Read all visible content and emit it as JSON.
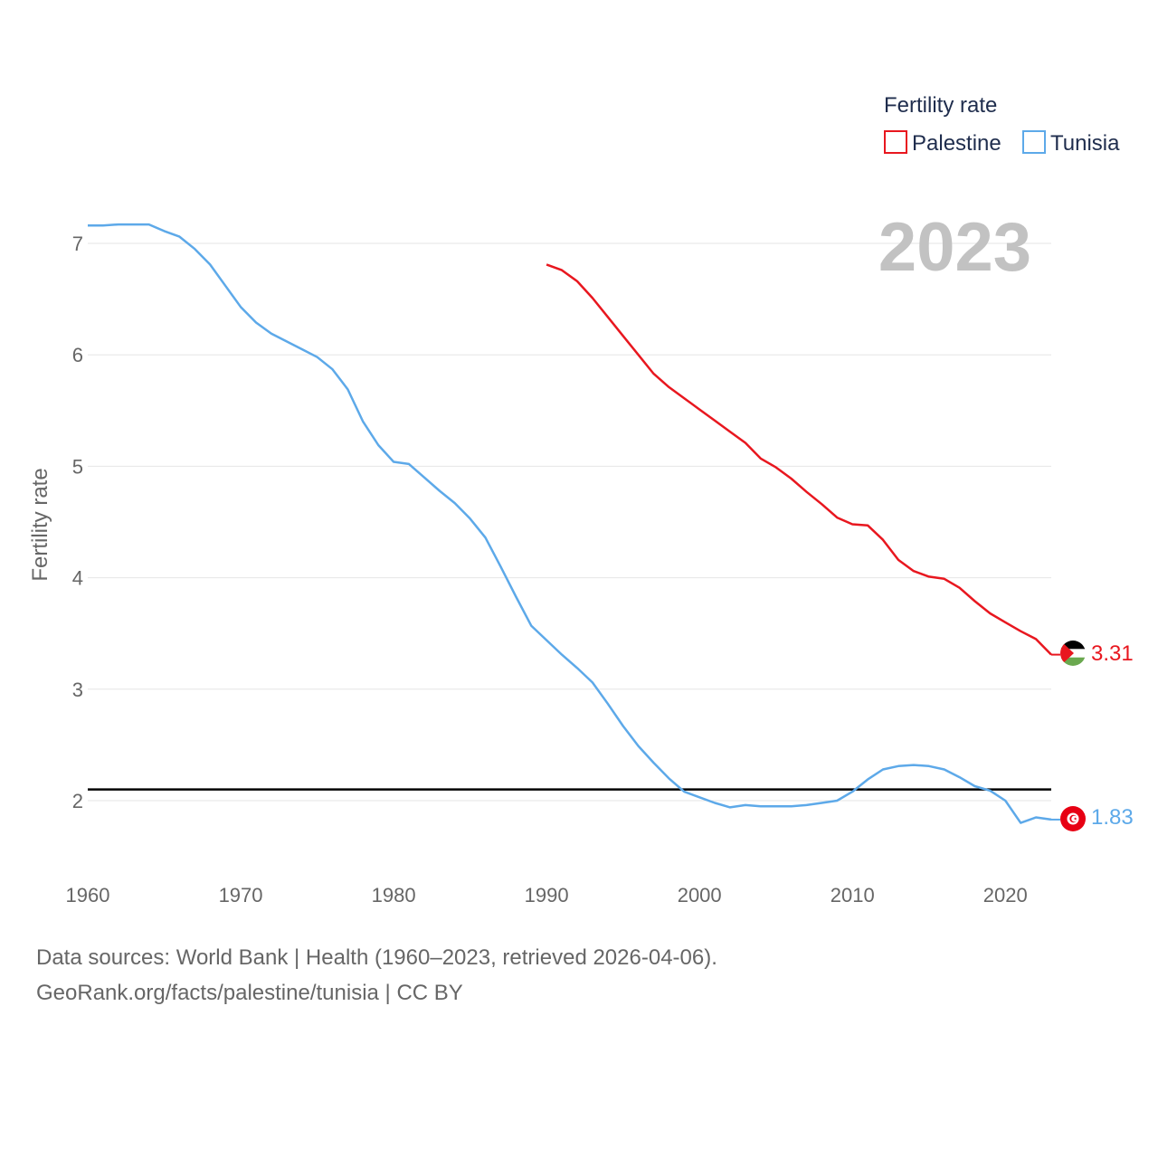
{
  "chart_data": {
    "type": "line",
    "title": "",
    "year_label": "2023",
    "xlabel": "",
    "ylabel": "Fertility rate",
    "xlim": [
      1960,
      2023
    ],
    "ylim": [
      1.2,
      7.3
    ],
    "x_ticks": [
      1960,
      1970,
      1980,
      1990,
      2000,
      2010,
      2020
    ],
    "y_ticks": [
      2,
      3,
      4,
      5,
      6,
      7
    ],
    "reference_line": {
      "y": 2.1,
      "color": "#000000"
    },
    "legend": {
      "title": "Fertility rate",
      "position": "top-right"
    },
    "series": [
      {
        "name": "Palestine",
        "color": "#e8171f",
        "end_label": "3.31",
        "points": [
          [
            1990,
            6.81
          ],
          [
            1991,
            6.76
          ],
          [
            1992,
            6.66
          ],
          [
            1993,
            6.51
          ],
          [
            1994,
            6.34
          ],
          [
            1995,
            6.17
          ],
          [
            1996,
            6.0
          ],
          [
            1997,
            5.83
          ],
          [
            1998,
            5.71
          ],
          [
            1999,
            5.61
          ],
          [
            2000,
            5.51
          ],
          [
            2001,
            5.41
          ],
          [
            2002,
            5.31
          ],
          [
            2003,
            5.21
          ],
          [
            2004,
            5.07
          ],
          [
            2005,
            4.99
          ],
          [
            2006,
            4.89
          ],
          [
            2007,
            4.77
          ],
          [
            2008,
            4.66
          ],
          [
            2009,
            4.54
          ],
          [
            2010,
            4.48
          ],
          [
            2011,
            4.47
          ],
          [
            2012,
            4.34
          ],
          [
            2013,
            4.16
          ],
          [
            2014,
            4.06
          ],
          [
            2015,
            4.01
          ],
          [
            2016,
            3.99
          ],
          [
            2017,
            3.91
          ],
          [
            2018,
            3.79
          ],
          [
            2019,
            3.68
          ],
          [
            2020,
            3.6
          ],
          [
            2021,
            3.52
          ],
          [
            2022,
            3.45
          ],
          [
            2023,
            3.31
          ]
        ]
      },
      {
        "name": "Tunisia",
        "color": "#5da9e9",
        "end_label": "1.83",
        "points": [
          [
            1960,
            7.16
          ],
          [
            1961,
            7.16
          ],
          [
            1962,
            7.17
          ],
          [
            1963,
            7.17
          ],
          [
            1964,
            7.17
          ],
          [
            1965,
            7.11
          ],
          [
            1966,
            7.06
          ],
          [
            1967,
            6.95
          ],
          [
            1968,
            6.81
          ],
          [
            1969,
            6.62
          ],
          [
            1970,
            6.43
          ],
          [
            1971,
            6.29
          ],
          [
            1972,
            6.19
          ],
          [
            1973,
            6.12
          ],
          [
            1974,
            6.05
          ],
          [
            1975,
            5.98
          ],
          [
            1976,
            5.87
          ],
          [
            1977,
            5.69
          ],
          [
            1978,
            5.4
          ],
          [
            1979,
            5.19
          ],
          [
            1980,
            5.04
          ],
          [
            1981,
            5.02
          ],
          [
            1982,
            4.9
          ],
          [
            1983,
            4.78
          ],
          [
            1984,
            4.67
          ],
          [
            1985,
            4.53
          ],
          [
            1986,
            4.36
          ],
          [
            1987,
            4.1
          ],
          [
            1988,
            3.83
          ],
          [
            1989,
            3.57
          ],
          [
            1990,
            3.44
          ],
          [
            1991,
            3.31
          ],
          [
            1992,
            3.19
          ],
          [
            1993,
            3.06
          ],
          [
            1994,
            2.87
          ],
          [
            1995,
            2.67
          ],
          [
            1996,
            2.49
          ],
          [
            1997,
            2.34
          ],
          [
            1998,
            2.2
          ],
          [
            1999,
            2.08
          ],
          [
            2000,
            2.03
          ],
          [
            2001,
            1.98
          ],
          [
            2002,
            1.94
          ],
          [
            2003,
            1.96
          ],
          [
            2004,
            1.95
          ],
          [
            2005,
            1.95
          ],
          [
            2006,
            1.95
          ],
          [
            2007,
            1.96
          ],
          [
            2008,
            1.98
          ],
          [
            2009,
            2.0
          ],
          [
            2010,
            2.08
          ],
          [
            2011,
            2.19
          ],
          [
            2012,
            2.28
          ],
          [
            2013,
            2.31
          ],
          [
            2014,
            2.32
          ],
          [
            2015,
            2.31
          ],
          [
            2016,
            2.28
          ],
          [
            2017,
            2.21
          ],
          [
            2018,
            2.13
          ],
          [
            2019,
            2.09
          ],
          [
            2020,
            2.0
          ],
          [
            2021,
            1.8
          ],
          [
            2022,
            1.85
          ],
          [
            2023,
            1.83
          ]
        ]
      }
    ]
  },
  "footer": {
    "sources": "Data sources: World Bank | Health (1960–2023, retrieved 2026-04-06).",
    "credit": "GeoRank.org/facts/palestine/tunisia | CC BY"
  }
}
